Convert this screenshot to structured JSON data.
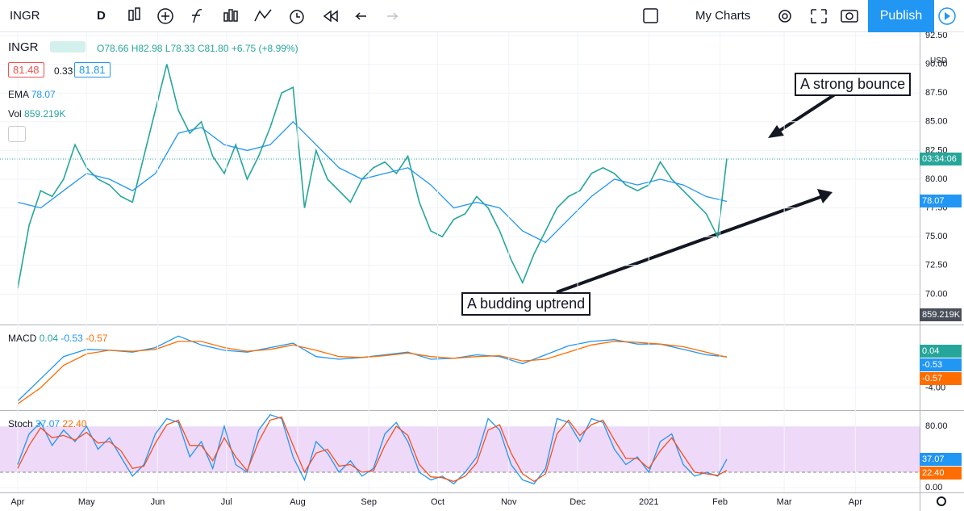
{
  "toolbar": {
    "symbol": "INGR",
    "interval": "D",
    "layouts": "My Charts",
    "publish": "Publish"
  },
  "legend": {
    "symbol": "INGR",
    "open": "O78.66",
    "high": "H82.98",
    "low": "L78.33",
    "close": "C81.80",
    "change": "+6.75 (+8.99%)",
    "bid": "81.48",
    "spread": "0.33",
    "ask": "81.81",
    "ema_label": "EMA",
    "ema_value": "78.07",
    "vol_label": "Vol",
    "vol_value": "859.219K"
  },
  "price_axis": {
    "currency": "USD",
    "countdown": "03:34:06"
  },
  "chart_data": [
    {
      "type": "line",
      "annotations": [
        "A strong bounce",
        "A budding uptrend"
      ],
      "x": [
        0,
        5,
        10,
        15,
        20,
        25,
        30,
        35,
        40,
        45,
        50,
        55,
        60,
        65,
        70,
        75,
        80,
        85,
        90,
        95,
        100,
        105,
        110,
        115,
        120,
        125,
        130,
        135,
        140,
        145,
        150,
        155,
        160,
        165,
        170,
        175,
        180,
        185,
        190,
        195,
        200,
        205,
        210,
        215,
        220,
        225,
        230,
        235,
        240,
        245,
        250,
        255,
        260,
        265,
        270,
        275,
        280,
        285,
        290,
        295,
        300,
        305,
        309
      ],
      "series": [
        {
          "name": "INGR",
          "color": "#26a69a",
          "values": [
            70.5,
            76,
            79,
            78.5,
            80,
            83,
            81,
            80,
            79.5,
            78.5,
            78,
            82,
            86,
            90,
            86,
            84,
            85,
            82,
            80.5,
            83,
            80,
            82,
            84.5,
            87.5,
            88,
            77.5,
            82.5,
            80,
            79,
            78,
            80,
            81,
            81.5,
            80.5,
            82,
            78,
            75.5,
            75,
            76.5,
            77,
            78.5,
            77.5,
            75.5,
            73,
            71,
            73.5,
            75.5,
            77.5,
            78.5,
            79,
            80.5,
            81,
            80.5,
            79.5,
            79,
            79.5,
            81.5,
            80,
            79,
            78,
            77,
            75,
            81.8
          ]
        },
        {
          "name": "EMA",
          "color": "#2196f3",
          "x": [
            0,
            10,
            20,
            30,
            40,
            50,
            60,
            70,
            80,
            90,
            100,
            110,
            120,
            130,
            140,
            150,
            160,
            170,
            180,
            190,
            200,
            210,
            220,
            230,
            240,
            250,
            260,
            270,
            280,
            290,
            300,
            309
          ],
          "values": [
            78,
            77.5,
            79,
            80.5,
            80,
            79,
            80.5,
            84,
            84.5,
            83,
            82.5,
            83,
            85,
            83,
            81,
            80,
            80.5,
            81,
            79.5,
            77.5,
            78,
            77.5,
            75.5,
            74.5,
            76.5,
            78.5,
            80,
            79.5,
            80,
            79.5,
            78.5,
            78.07
          ]
        }
      ],
      "xlim": [
        -7.7,
        393
      ],
      "ylim": [
        67.5,
        92.5
      ],
      "yticks": [
        {
          "value": 70,
          "label": "70.00"
        },
        {
          "value": 72.5,
          "label": "72.50"
        },
        {
          "value": 75,
          "label": "75.00"
        },
        {
          "value": 77.5,
          "label": "77.50"
        },
        {
          "value": 80,
          "label": "80.00"
        },
        {
          "value": 82.5,
          "label": "82.50"
        },
        {
          "value": 85,
          "label": "85.00"
        },
        {
          "value": 87.5,
          "label": "87.50"
        },
        {
          "value": 90,
          "label": "90.00"
        },
        {
          "value": 92.5,
          "label": "92.50"
        }
      ],
      "grid": true
    },
    {
      "type": "line",
      "title": "MACD",
      "legend_values": [
        "0.04",
        "-0.53",
        "-0.57"
      ],
      "x": [
        0,
        10,
        20,
        30,
        40,
        50,
        60,
        70,
        80,
        90,
        100,
        110,
        120,
        130,
        140,
        150,
        160,
        170,
        180,
        190,
        200,
        210,
        220,
        230,
        240,
        250,
        260,
        270,
        280,
        290,
        300,
        309
      ],
      "series": [
        {
          "color": "#2196f3",
          "values": [
            -5.5,
            -3,
            -0.5,
            0.3,
            0.2,
            0,
            0.5,
            1.8,
            0.8,
            0.2,
            0,
            0.5,
            1,
            -0.5,
            -0.8,
            -0.6,
            -0.3,
            0,
            -0.8,
            -0.7,
            -0.3,
            -0.5,
            -1.3,
            -0.3,
            0.7,
            1.2,
            1.4,
            0.9,
            0.9,
            0.3,
            -0.3,
            -0.53
          ]
        },
        {
          "color": "#ff6d00",
          "values": [
            -5.8,
            -4,
            -1.5,
            -0.2,
            0.2,
            0.1,
            0.3,
            1.2,
            1.2,
            0.5,
            0.1,
            0.3,
            0.8,
            0.2,
            -0.5,
            -0.6,
            -0.4,
            -0.1,
            -0.5,
            -0.7,
            -0.5,
            -0.4,
            -1,
            -0.8,
            0,
            0.8,
            1.2,
            1.1,
            0.9,
            0.6,
            0,
            -0.57
          ]
        }
      ],
      "xlim": [
        -7.7,
        393
      ],
      "ylim": [
        -6.5,
        3
      ],
      "yticks": [
        {
          "value": -4,
          "label": "-4.00"
        }
      ],
      "grid": true
    },
    {
      "type": "line",
      "title": "Stoch",
      "legend_values": [
        "37.07",
        "22.40"
      ],
      "x": [
        0,
        5,
        10,
        15,
        20,
        25,
        30,
        35,
        40,
        45,
        50,
        55,
        60,
        65,
        70,
        75,
        80,
        85,
        90,
        95,
        100,
        105,
        110,
        115,
        120,
        125,
        130,
        135,
        140,
        145,
        150,
        155,
        160,
        165,
        170,
        175,
        180,
        185,
        190,
        195,
        200,
        205,
        210,
        215,
        220,
        225,
        230,
        235,
        240,
        245,
        250,
        255,
        260,
        265,
        270,
        275,
        280,
        285,
        290,
        295,
        300,
        305,
        309
      ],
      "series": [
        {
          "color": "#2196f3",
          "values": [
            30,
            70,
            85,
            55,
            75,
            60,
            80,
            50,
            65,
            40,
            15,
            30,
            70,
            90,
            85,
            40,
            60,
            25,
            80,
            30,
            20,
            75,
            95,
            90,
            40,
            10,
            60,
            45,
            20,
            35,
            15,
            25,
            70,
            85,
            60,
            20,
            10,
            15,
            5,
            20,
            40,
            90,
            75,
            30,
            10,
            5,
            25,
            90,
            85,
            60,
            90,
            85,
            50,
            30,
            40,
            20,
            60,
            70,
            30,
            15,
            20,
            15,
            37.07
          ]
        },
        {
          "color": "#f4511e",
          "values": [
            25,
            55,
            78,
            65,
            68,
            62,
            72,
            58,
            60,
            48,
            25,
            28,
            58,
            82,
            88,
            55,
            55,
            35,
            65,
            40,
            22,
            60,
            88,
            92,
            55,
            20,
            45,
            50,
            28,
            30,
            20,
            22,
            55,
            80,
            68,
            30,
            14,
            13,
            8,
            15,
            32,
            75,
            82,
            45,
            18,
            8,
            18,
            70,
            88,
            68,
            82,
            88,
            62,
            38,
            38,
            25,
            48,
            65,
            42,
            20,
            18,
            16,
            22.4
          ]
        }
      ],
      "band": [
        20,
        80
      ],
      "band_color": "#e8c9f7",
      "xlim": [
        -7.7,
        393
      ],
      "ylim": [
        -6.3,
        100
      ],
      "yticks": [
        {
          "value": 0,
          "label": "0.00"
        },
        {
          "value": 80,
          "label": "80.00"
        }
      ],
      "xticks": [
        {
          "value": 0,
          "label": "Apr"
        },
        {
          "value": 30,
          "label": "May"
        },
        {
          "value": 61,
          "label": "Jun"
        },
        {
          "value": 91,
          "label": "Jul"
        },
        {
          "value": 122,
          "label": "Aug"
        },
        {
          "value": 153,
          "label": "Sep"
        },
        {
          "value": 183,
          "label": "Oct"
        },
        {
          "value": 214,
          "label": "Nov"
        },
        {
          "value": 244,
          "label": "Dec"
        },
        {
          "value": 275,
          "label": "2021"
        },
        {
          "value": 306,
          "label": "Feb"
        },
        {
          "value": 334,
          "label": "Mar"
        },
        {
          "value": 365,
          "label": "Apr"
        }
      ],
      "grid": true
    }
  ]
}
